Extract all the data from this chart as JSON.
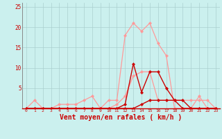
{
  "x_labels": [
    "0",
    "1",
    "2",
    "3",
    "4",
    "5",
    "6",
    "7",
    "8",
    "9",
    "10",
    "11",
    "12",
    "13",
    "14",
    "15",
    "16",
    "17",
    "18",
    "19",
    "20",
    "21",
    "22",
    "23"
  ],
  "series_light_rafales": [
    0,
    2,
    0,
    0,
    1,
    1,
    1,
    2,
    3,
    0,
    2,
    2,
    18,
    21,
    19,
    21,
    16,
    13,
    0,
    0,
    0,
    3,
    0,
    0
  ],
  "series_light_moyen": [
    0,
    0,
    0,
    0,
    0,
    0,
    0,
    0,
    0,
    0,
    0,
    1,
    3,
    8,
    9,
    9,
    2,
    2,
    2,
    2,
    2,
    2,
    2,
    0
  ],
  "series_dark_rafales": [
    0,
    0,
    0,
    0,
    0,
    0,
    0,
    0,
    0,
    0,
    0,
    0,
    1,
    11,
    4,
    9,
    9,
    5,
    2,
    0,
    0,
    0,
    0,
    0
  ],
  "series_dark_moyen": [
    0,
    0,
    0,
    0,
    0,
    0,
    0,
    0,
    0,
    0,
    0,
    0,
    0,
    0,
    1,
    2,
    2,
    2,
    2,
    2,
    0,
    0,
    0,
    0
  ],
  "color_light": "#FF9999",
  "color_dark": "#CC0000",
  "color_bg": "#CBF0EE",
  "color_grid": "#AACFCF",
  "color_axis_line": "#CC0000",
  "color_tick_label": "#CC0000",
  "xlabel": "Vent moyen/en rafales ( km/h )",
  "ylim": [
    0,
    26
  ],
  "yticks": [
    5,
    10,
    15,
    20,
    25
  ],
  "figwidth": 3.2,
  "figheight": 2.0,
  "dpi": 100
}
